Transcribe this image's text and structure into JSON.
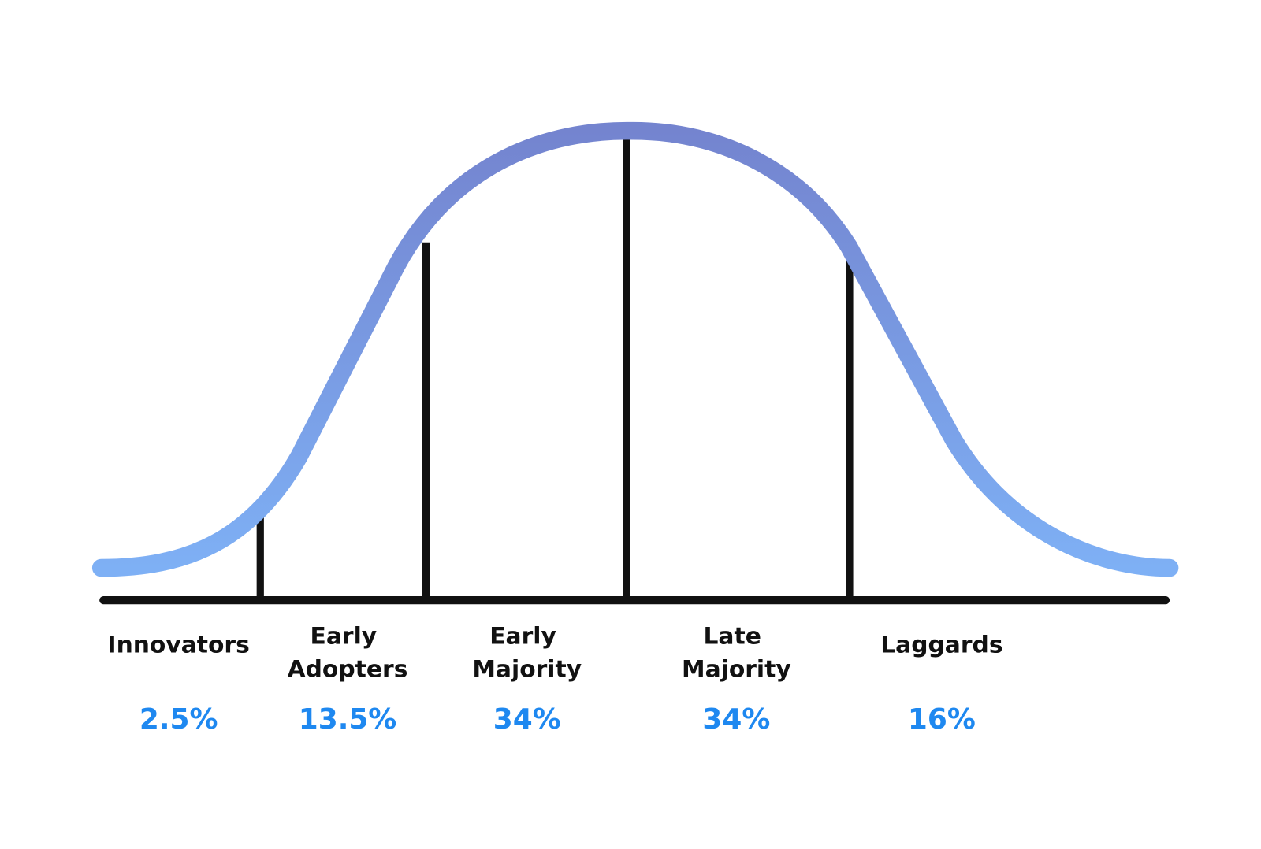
{
  "segments": [
    {
      "label": [
        "Innovators"
      ],
      "share": "2.5%"
    },
    {
      "label": [
        "Early",
        "Adopters"
      ],
      "share": "13.5%"
    },
    {
      "label": [
        "Early",
        "Majority"
      ],
      "share": "34%"
    },
    {
      "label": [
        "Late",
        "Majority"
      ],
      "share": "34%"
    },
    {
      "label": [
        "Laggards"
      ],
      "share": "16%"
    }
  ]
}
